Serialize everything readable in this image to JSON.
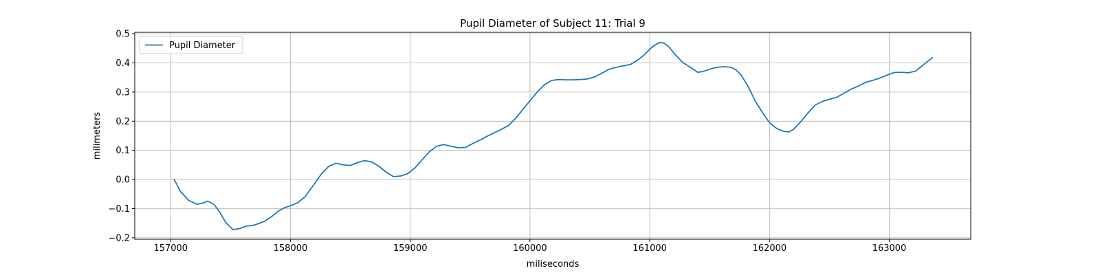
{
  "chart_data": {
    "type": "line",
    "title": "Pupil Diameter of Subject 11: Trial 9",
    "xlabel": "miliseconds",
    "ylabel": "milimeters",
    "xlim": [
      156700,
      163680
    ],
    "ylim": [
      -0.205,
      0.505
    ],
    "xticks": [
      157000,
      158000,
      159000,
      160000,
      161000,
      162000,
      163000
    ],
    "yticks": [
      -0.2,
      -0.1,
      0.0,
      0.1,
      0.2,
      0.3,
      0.4,
      0.5
    ],
    "xtick_labels": [
      "157000",
      "158000",
      "159000",
      "160000",
      "161000",
      "162000",
      "163000"
    ],
    "ytick_labels": [
      "−0.2",
      "−0.1",
      "0.0",
      "0.1",
      "0.2",
      "0.3",
      "0.4",
      "0.5"
    ],
    "grid": true,
    "legend_position": "top-left",
    "series": [
      {
        "name": "Pupil Diameter",
        "color": "#1f77b4",
        "x": [
          157030,
          157080,
          157150,
          157220,
          157260,
          157310,
          157360,
          157410,
          157460,
          157520,
          157580,
          157630,
          157680,
          157730,
          157790,
          157850,
          157900,
          157950,
          158000,
          158060,
          158120,
          158200,
          158260,
          158320,
          158380,
          158440,
          158500,
          158560,
          158620,
          158680,
          158740,
          158800,
          158860,
          158920,
          158980,
          159040,
          159100,
          159160,
          159220,
          159280,
          159340,
          159400,
          159460,
          159530,
          159580,
          159640,
          159700,
          159760,
          159820,
          159880,
          159940,
          160000,
          160060,
          160120,
          160180,
          160240,
          160300,
          160360,
          160420,
          160480,
          160540,
          160600,
          160660,
          160720,
          160780,
          160840,
          160900,
          160960,
          161020,
          161080,
          161120,
          161160,
          161220,
          161280,
          161340,
          161400,
          161440,
          161500,
          161560,
          161620,
          161680,
          161720,
          161760,
          161820,
          161880,
          161940,
          162000,
          162060,
          162120,
          162160,
          162200,
          162260,
          162320,
          162380,
          162440,
          162500,
          162560,
          162620,
          162680,
          162740,
          162800,
          162860,
          162920,
          162980,
          163040,
          163100,
          163160,
          163220,
          163280,
          163340,
          163360
        ],
        "y": [
          0.0,
          -0.04,
          -0.072,
          -0.085,
          -0.082,
          -0.074,
          -0.085,
          -0.112,
          -0.148,
          -0.172,
          -0.168,
          -0.16,
          -0.158,
          -0.152,
          -0.142,
          -0.125,
          -0.108,
          -0.097,
          -0.09,
          -0.08,
          -0.06,
          -0.015,
          0.02,
          0.045,
          0.056,
          0.05,
          0.048,
          0.058,
          0.065,
          0.06,
          0.045,
          0.025,
          0.01,
          0.012,
          0.02,
          0.04,
          0.068,
          0.095,
          0.114,
          0.12,
          0.114,
          0.109,
          0.11,
          0.125,
          0.135,
          0.148,
          0.16,
          0.172,
          0.185,
          0.21,
          0.24,
          0.27,
          0.3,
          0.325,
          0.34,
          0.343,
          0.342,
          0.342,
          0.343,
          0.345,
          0.352,
          0.365,
          0.378,
          0.385,
          0.39,
          0.395,
          0.41,
          0.43,
          0.455,
          0.47,
          0.468,
          0.455,
          0.425,
          0.4,
          0.385,
          0.368,
          0.37,
          0.378,
          0.385,
          0.387,
          0.385,
          0.376,
          0.36,
          0.32,
          0.27,
          0.23,
          0.195,
          0.175,
          0.165,
          0.163,
          0.172,
          0.198,
          0.228,
          0.255,
          0.268,
          0.275,
          0.282,
          0.295,
          0.31,
          0.32,
          0.333,
          0.34,
          0.348,
          0.358,
          0.367,
          0.368,
          0.366,
          0.372,
          0.392,
          0.412,
          0.418
        ]
      }
    ]
  }
}
